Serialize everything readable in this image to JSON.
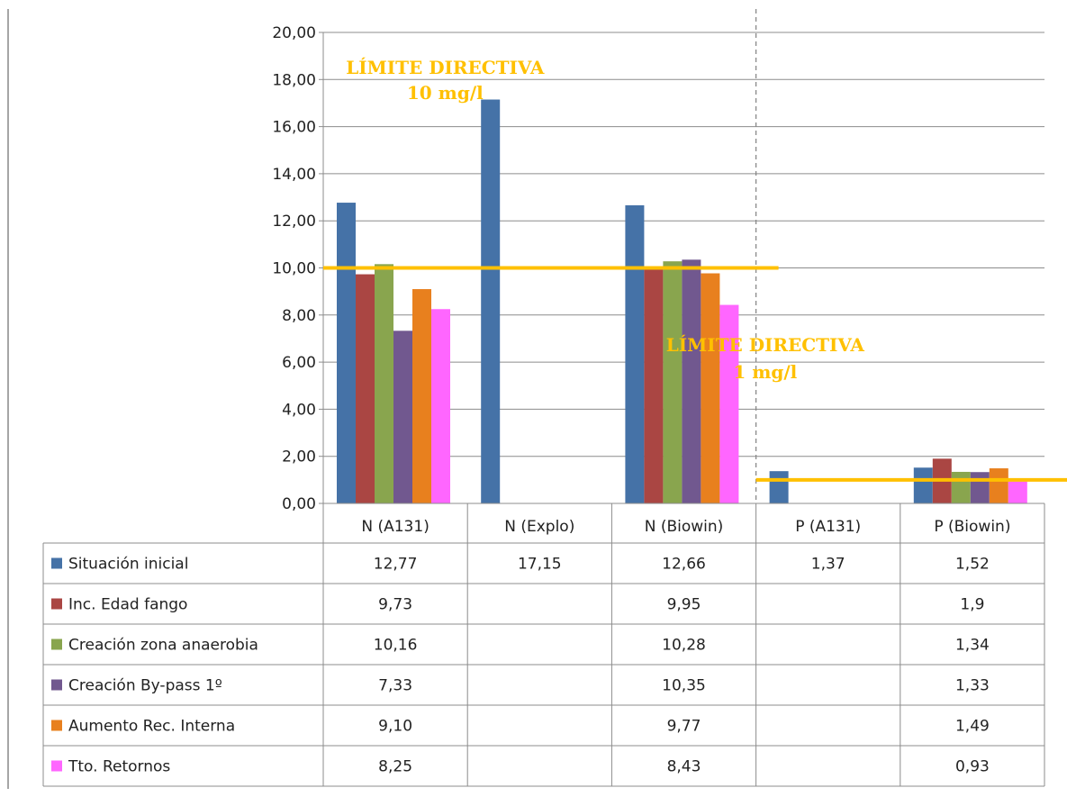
{
  "chart_data": {
    "type": "bar",
    "categories": [
      "N (A131)",
      "N (Explo)",
      "N (Biowin)",
      "P (A131)",
      "P (Biowin)"
    ],
    "ylim": [
      0,
      20
    ],
    "yticks": [
      "0,00",
      "2,00",
      "4,00",
      "6,00",
      "8,00",
      "10,00",
      "12,00",
      "14,00",
      "16,00",
      "18,00",
      "20,00"
    ],
    "grid": true,
    "legend": "data-table",
    "series": [
      {
        "name": "Situación inicial",
        "color": "#4572A7",
        "values": [
          12.77,
          17.15,
          12.66,
          1.37,
          1.52
        ],
        "labels": [
          "12,77",
          "17,15",
          "12,66",
          "1,37",
          "1,52"
        ]
      },
      {
        "name": "Inc. Edad fango",
        "color": "#AA4643",
        "values": [
          9.73,
          null,
          9.95,
          null,
          1.9
        ],
        "labels": [
          "9,73",
          "",
          "9,95",
          "",
          "1,9"
        ]
      },
      {
        "name": "Creación zona anaerobia",
        "color": "#89A54E",
        "values": [
          10.16,
          null,
          10.28,
          null,
          1.34
        ],
        "labels": [
          "10,16",
          "",
          "10,28",
          "",
          "1,34"
        ]
      },
      {
        "name": "Creación By-pass 1º",
        "color": "#71588F",
        "values": [
          7.33,
          null,
          10.35,
          null,
          1.33
        ],
        "labels": [
          "7,33",
          "",
          "10,35",
          "",
          "1,33"
        ]
      },
      {
        "name": "Aumento Rec. Interna",
        "color": "#E8801E",
        "values": [
          9.1,
          null,
          9.77,
          null,
          1.49
        ],
        "labels": [
          "9,10",
          "",
          "9,77",
          "",
          "1,49"
        ]
      },
      {
        "name": "Tto. Retornos",
        "color": "#FF66FF",
        "values": [
          8.25,
          null,
          8.43,
          null,
          0.93
        ],
        "labels": [
          "8,25",
          "",
          "8,43",
          "",
          "0,93"
        ]
      }
    ],
    "limits": [
      {
        "value": 10,
        "categories": [
          0,
          2
        ],
        "line1": "LÍMITE DIRECTIVA",
        "line2": "10 mg/l",
        "color": "#FFC000"
      },
      {
        "value": 1,
        "categories": [
          3,
          4
        ],
        "line1": "LÍMITE DIRECTIVA",
        "line2": "1 mg/l",
        "color": "#FFC000"
      }
    ]
  }
}
